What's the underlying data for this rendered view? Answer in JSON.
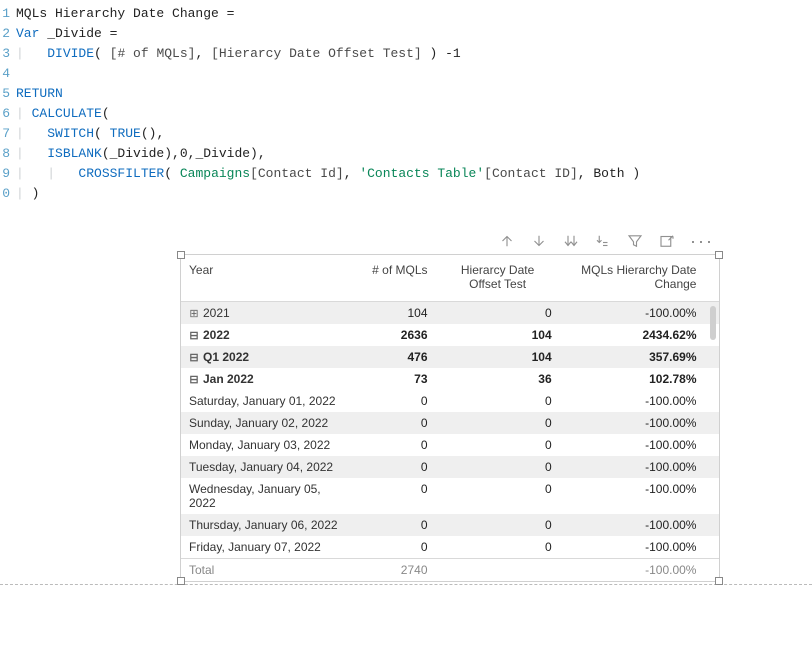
{
  "editor": {
    "lines": [
      {
        "no": "1",
        "segments": [
          {
            "cls": "plain",
            "t": "MQLs Hierarchy Date Change ="
          }
        ]
      },
      {
        "no": "2",
        "segments": [
          {
            "cls": "kw",
            "t": "Var"
          },
          {
            "cls": "plain",
            "t": " _Divide ="
          }
        ]
      },
      {
        "no": "3",
        "segments": [
          {
            "cls": "guide",
            "t": "|   "
          },
          {
            "cls": "kw",
            "t": "DIVIDE"
          },
          {
            "cls": "plain",
            "t": "( "
          },
          {
            "cls": "ref",
            "t": "[# of MQLs]"
          },
          {
            "cls": "plain",
            "t": ", "
          },
          {
            "cls": "ref",
            "t": "[Hierarcy Date Offset Test]"
          },
          {
            "cls": "plain",
            "t": " ) -1"
          }
        ]
      },
      {
        "no": "4",
        "segments": []
      },
      {
        "no": "5",
        "segments": [
          {
            "cls": "kw",
            "t": "RETURN"
          }
        ]
      },
      {
        "no": "6",
        "segments": [
          {
            "cls": "guide",
            "t": "| "
          },
          {
            "cls": "kw",
            "t": "CALCULATE"
          },
          {
            "cls": "plain",
            "t": "("
          }
        ]
      },
      {
        "no": "7",
        "segments": [
          {
            "cls": "guide",
            "t": "|   "
          },
          {
            "cls": "kw",
            "t": "SWITCH"
          },
          {
            "cls": "plain",
            "t": "( "
          },
          {
            "cls": "kw",
            "t": "TRUE"
          },
          {
            "cls": "plain",
            "t": "(),"
          }
        ]
      },
      {
        "no": "8",
        "segments": [
          {
            "cls": "guide",
            "t": "|   "
          },
          {
            "cls": "kw",
            "t": "ISBLANK"
          },
          {
            "cls": "plain",
            "t": "(_Divide),0,_Divide),"
          }
        ]
      },
      {
        "no": "9",
        "segments": [
          {
            "cls": "guide",
            "t": "|   |   "
          },
          {
            "cls": "kw",
            "t": "CROSSFILTER"
          },
          {
            "cls": "plain",
            "t": "( "
          },
          {
            "cls": "lit",
            "t": "Campaigns"
          },
          {
            "cls": "ref",
            "t": "[Contact Id]"
          },
          {
            "cls": "plain",
            "t": ", "
          },
          {
            "cls": "lit",
            "t": "'Contacts Table'"
          },
          {
            "cls": "ref",
            "t": "[Contact ID]"
          },
          {
            "cls": "plain",
            "t": ", Both )"
          }
        ]
      },
      {
        "no": "0",
        "segments": [
          {
            "cls": "guide",
            "t": "| "
          },
          {
            "cls": "plain",
            "t": ")"
          }
        ]
      }
    ]
  },
  "toolbar": {
    "icons": {
      "drill_up": "drill-up-icon",
      "drill_down": "drill-down-icon",
      "expand_down": "expand-all-down-icon",
      "expand_level": "expand-next-level-icon",
      "filter": "filter-icon",
      "focus": "focus-mode-icon",
      "more": "more-options-icon"
    },
    "more_label": "···"
  },
  "table": {
    "headers": {
      "year": "Year",
      "mqls": "# of MQLs",
      "offset": "Hierarcy Date Offset Test",
      "change": "MQLs Hierarchy Date Change"
    },
    "rows": [
      {
        "indent": 0,
        "alt": true,
        "bold": false,
        "exp": "⊞",
        "label": "2021",
        "mqls": "104",
        "offset": "0",
        "change": "-100.00%"
      },
      {
        "indent": 0,
        "alt": false,
        "bold": true,
        "exp": "⊟",
        "label": "2022",
        "mqls": "2636",
        "offset": "104",
        "change": "2434.62%"
      },
      {
        "indent": 1,
        "alt": true,
        "bold": true,
        "exp": "⊟",
        "label": "Q1 2022",
        "mqls": "476",
        "offset": "104",
        "change": "357.69%"
      },
      {
        "indent": 2,
        "alt": false,
        "bold": true,
        "exp": "⊟",
        "label": "Jan 2022",
        "mqls": "73",
        "offset": "36",
        "change": "102.78%"
      },
      {
        "indent": 4,
        "alt": false,
        "bold": false,
        "exp": "",
        "label": "Saturday, January 01, 2022",
        "mqls": "0",
        "offset": "0",
        "change": "-100.00%"
      },
      {
        "indent": 4,
        "alt": true,
        "bold": false,
        "exp": "",
        "label": "Sunday, January 02, 2022",
        "mqls": "0",
        "offset": "0",
        "change": "-100.00%"
      },
      {
        "indent": 4,
        "alt": false,
        "bold": false,
        "exp": "",
        "label": "Monday, January 03, 2022",
        "mqls": "0",
        "offset": "0",
        "change": "-100.00%"
      },
      {
        "indent": 4,
        "alt": true,
        "bold": false,
        "exp": "",
        "label": "Tuesday, January 04, 2022",
        "mqls": "0",
        "offset": "0",
        "change": "-100.00%"
      },
      {
        "indent": 4,
        "alt": false,
        "bold": false,
        "exp": "",
        "label": "Wednesday, January 05, 2022",
        "mqls": "0",
        "offset": "0",
        "change": "-100.00%"
      },
      {
        "indent": 4,
        "alt": true,
        "bold": false,
        "exp": "",
        "label": "Thursday, January 06, 2022",
        "mqls": "0",
        "offset": "0",
        "change": "-100.00%"
      },
      {
        "indent": 4,
        "alt": false,
        "bold": false,
        "exp": "",
        "label": "Friday, January 07, 2022",
        "mqls": "0",
        "offset": "0",
        "change": "-100.00%"
      }
    ],
    "total": {
      "label": "Total",
      "mqls": "2740",
      "offset": "",
      "change": "-100.00%"
    }
  }
}
